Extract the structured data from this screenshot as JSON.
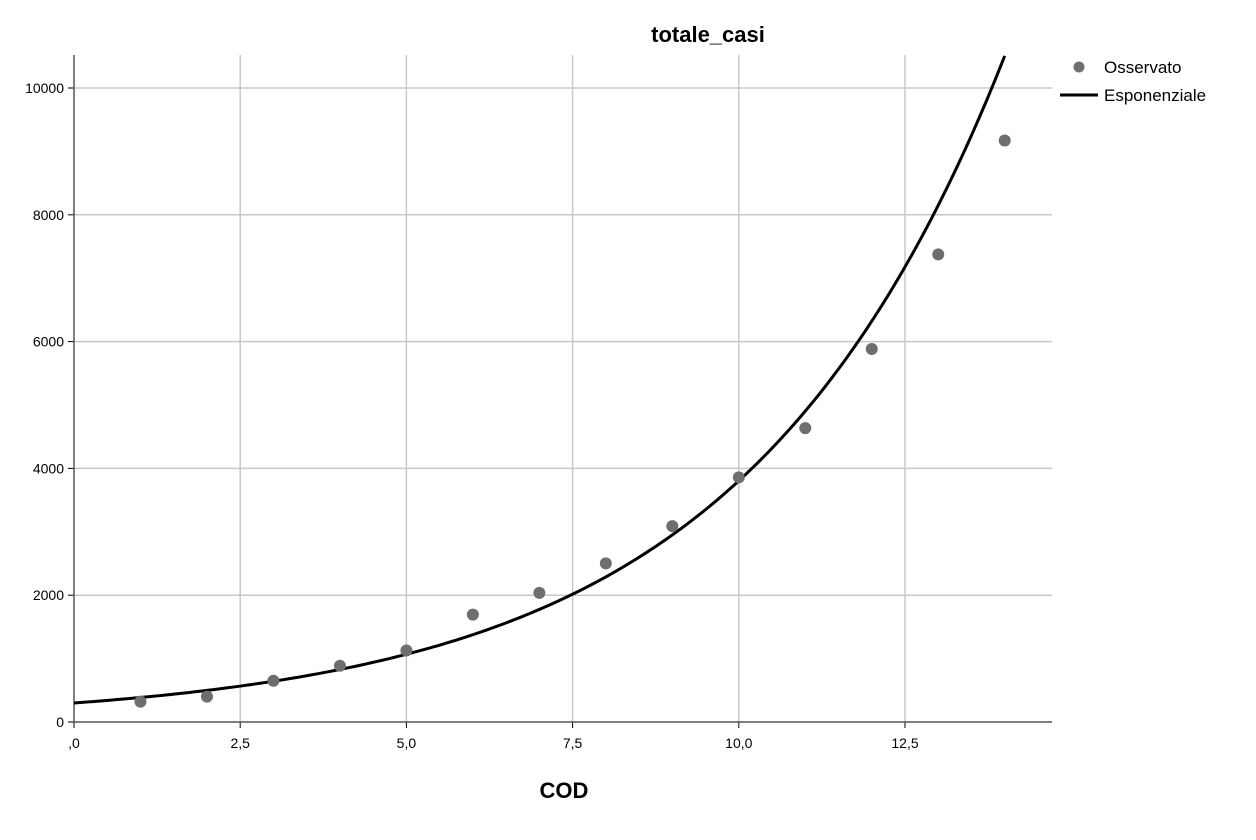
{
  "chart_data": {
    "type": "scatter",
    "title": "totale_casi",
    "xlabel": "COD",
    "ylabel": "",
    "xlim": [
      0,
      15
    ],
    "ylim": [
      0,
      10500
    ],
    "x_ticks": [
      0,
      2.5,
      5,
      7.5,
      10,
      12.5
    ],
    "x_tick_labels": [
      ",0",
      "2,5",
      "5,0",
      "7,5",
      "10,0",
      "12,5"
    ],
    "y_ticks": [
      0,
      2000,
      4000,
      6000,
      8000,
      10000
    ],
    "y_tick_labels": [
      "0",
      "2000",
      "4000",
      "6000",
      "8000",
      "10000"
    ],
    "grid": true,
    "legend_position": "top-right",
    "series": [
      {
        "name": "Osservato",
        "kind": "points",
        "color": "#6e6e6e",
        "x": [
          1,
          2,
          3,
          4,
          5,
          6,
          7,
          8,
          9,
          10,
          11,
          12,
          13,
          14
        ],
        "y": [
          322,
          400,
          650,
          888,
          1128,
          1694,
          2036,
          2502,
          3089,
          3858,
          4636,
          5883,
          7375,
          9172
        ]
      },
      {
        "name": "Esponenziale",
        "kind": "curve",
        "color": "#000000",
        "model": "exponential",
        "a": 300,
        "b": 0.254,
        "x_range": [
          0,
          14
        ]
      }
    ]
  }
}
